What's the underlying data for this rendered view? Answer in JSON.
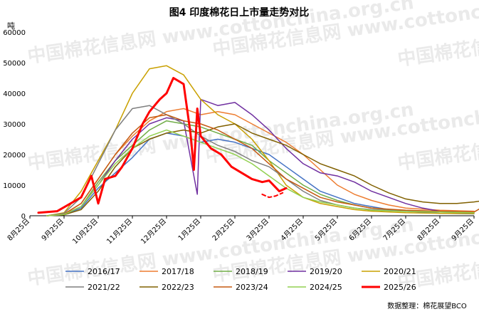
{
  "chart_data": {
    "type": "line",
    "title": "图4 印度棉花日上市量走势对比",
    "ylabel": "吨",
    "ylim": [
      0,
      60000
    ],
    "yticks": [
      "0",
      "10000",
      "20000",
      "30000",
      "40000",
      "50000",
      "60000"
    ],
    "xticks": [
      "8月25日",
      "9月25日",
      "10月25日",
      "11月25日",
      "12月25日",
      "1月25日",
      "2月25日",
      "3月25日",
      "4月25日",
      "5月25日",
      "6月25日",
      "7月25日",
      "8月25日",
      "9月25日"
    ],
    "grid": false,
    "legend_position": "bottom",
    "watermark": "中国棉花信息网 www.cottonchina.org.cn",
    "source": "数据整理：棉花展望BCO",
    "series": [
      {
        "name": "2016/17",
        "color": "#4472c4",
        "width": 1.5,
        "dash": false,
        "points": [
          [
            0.5,
            2
          ],
          [
            1,
            400
          ],
          [
            1.5,
            2500
          ],
          [
            2,
            9000
          ],
          [
            2.5,
            14000
          ],
          [
            3,
            19000
          ],
          [
            3.5,
            25000
          ],
          [
            4,
            27000
          ],
          [
            4.5,
            26000
          ],
          [
            5,
            24000
          ],
          [
            5.5,
            25000
          ],
          [
            6,
            24000
          ],
          [
            6.5,
            22000
          ],
          [
            7,
            20000
          ],
          [
            7.5,
            16000
          ],
          [
            8,
            12000
          ],
          [
            8.5,
            8000
          ],
          [
            9,
            6000
          ],
          [
            9.5,
            4000
          ],
          [
            10,
            3000
          ],
          [
            10.5,
            2000
          ],
          [
            11,
            1500
          ],
          [
            12,
            800
          ],
          [
            13,
            600
          ]
        ]
      },
      {
        "name": "2017/18",
        "color": "#ed7d31",
        "width": 1.5,
        "dash": false,
        "points": [
          [
            0.5,
            2
          ],
          [
            1,
            600
          ],
          [
            1.5,
            4000
          ],
          [
            2,
            12000
          ],
          [
            2.5,
            20000
          ],
          [
            3,
            26000
          ],
          [
            3.5,
            31000
          ],
          [
            4,
            34000
          ],
          [
            4.5,
            35000
          ],
          [
            5,
            33000
          ],
          [
            5.5,
            34000
          ],
          [
            6,
            33000
          ],
          [
            6.5,
            30000
          ],
          [
            7,
            27000
          ],
          [
            7.5,
            24000
          ],
          [
            8,
            20000
          ],
          [
            8.5,
            15000
          ],
          [
            9,
            10000
          ],
          [
            9.5,
            7000
          ],
          [
            10,
            5000
          ],
          [
            10.5,
            3500
          ],
          [
            11,
            2500
          ],
          [
            12,
            1800
          ],
          [
            13,
            1500
          ]
        ]
      },
      {
        "name": "2018/19",
        "color": "#70ad47",
        "width": 1.5,
        "dash": false,
        "points": [
          [
            0.5,
            2
          ],
          [
            1,
            500
          ],
          [
            1.5,
            3000
          ],
          [
            2,
            11000
          ],
          [
            2.5,
            18000
          ],
          [
            3,
            23000
          ],
          [
            3.5,
            28000
          ],
          [
            4,
            31000
          ],
          [
            4.5,
            30000
          ],
          [
            5,
            29000
          ],
          [
            5.5,
            27000
          ],
          [
            6,
            25000
          ],
          [
            6.5,
            23000
          ],
          [
            7,
            18000
          ],
          [
            7.5,
            14000
          ],
          [
            8,
            10000
          ],
          [
            8.5,
            7000
          ],
          [
            9,
            5000
          ],
          [
            9.5,
            3500
          ],
          [
            10,
            2500
          ],
          [
            10.5,
            2000
          ],
          [
            11,
            1600
          ],
          [
            12,
            1200
          ],
          [
            13,
            1000
          ]
        ]
      },
      {
        "name": "2019/20",
        "color": "#7030a0",
        "width": 1.5,
        "dash": false,
        "points": [
          [
            0.5,
            2
          ],
          [
            1,
            400
          ],
          [
            1.5,
            3000
          ],
          [
            2,
            10000
          ],
          [
            2.5,
            18000
          ],
          [
            3,
            25000
          ],
          [
            3.5,
            30000
          ],
          [
            4,
            32000
          ],
          [
            4.5,
            31000
          ],
          [
            4.9,
            7000
          ],
          [
            5,
            38000
          ],
          [
            5.5,
            36000
          ],
          [
            6,
            37000
          ],
          [
            6.5,
            33000
          ],
          [
            7,
            28000
          ],
          [
            7.5,
            22000
          ],
          [
            8,
            17000
          ],
          [
            8.5,
            14000
          ],
          [
            9,
            13000
          ],
          [
            9.5,
            11000
          ],
          [
            10,
            8000
          ],
          [
            10.5,
            6000
          ],
          [
            11,
            4000
          ],
          [
            11.5,
            2500
          ],
          [
            12,
            1500
          ],
          [
            13,
            1200
          ]
        ]
      },
      {
        "name": "2020/21",
        "color": "#c9a000",
        "width": 1.5,
        "dash": false,
        "points": [
          [
            0.5,
            2
          ],
          [
            1,
            1000
          ],
          [
            1.5,
            8000
          ],
          [
            2,
            18000
          ],
          [
            2.5,
            28000
          ],
          [
            3,
            40000
          ],
          [
            3.5,
            48000
          ],
          [
            4,
            49000
          ],
          [
            4.5,
            46000
          ],
          [
            5,
            38000
          ],
          [
            5.5,
            33000
          ],
          [
            6,
            30000
          ],
          [
            6.5,
            25000
          ],
          [
            7,
            18000
          ],
          [
            7.5,
            10000
          ],
          [
            8,
            6000
          ],
          [
            8.5,
            4000
          ],
          [
            9,
            3000
          ],
          [
            9.5,
            2000
          ],
          [
            10,
            1500
          ],
          [
            11,
            1000
          ],
          [
            12,
            800
          ],
          [
            13,
            700
          ]
        ]
      },
      {
        "name": "2021/22",
        "color": "#7f7f7f",
        "width": 1.5,
        "dash": false,
        "points": [
          [
            0.5,
            2
          ],
          [
            1,
            800
          ],
          [
            1.5,
            6000
          ],
          [
            2,
            17000
          ],
          [
            2.5,
            28000
          ],
          [
            3,
            35000
          ],
          [
            3.5,
            36000
          ],
          [
            4,
            33000
          ],
          [
            4.5,
            30000
          ],
          [
            5,
            26000
          ],
          [
            5.5,
            23000
          ],
          [
            6,
            21000
          ],
          [
            6.5,
            18000
          ],
          [
            7,
            16000
          ],
          [
            7.5,
            12000
          ],
          [
            8,
            8000
          ],
          [
            8.5,
            5000
          ],
          [
            9,
            3500
          ],
          [
            9.5,
            2500
          ],
          [
            10,
            2000
          ],
          [
            11,
            1500
          ],
          [
            12,
            1200
          ],
          [
            13,
            1000
          ]
        ]
      },
      {
        "name": "2022/23",
        "color": "#806000",
        "width": 1.5,
        "dash": false,
        "points": [
          [
            0.5,
            2
          ],
          [
            1,
            300
          ],
          [
            1.5,
            2000
          ],
          [
            2,
            8000
          ],
          [
            2.5,
            16000
          ],
          [
            3,
            22000
          ],
          [
            3.5,
            25000
          ],
          [
            4,
            27000
          ],
          [
            4.5,
            28000
          ],
          [
            5,
            27000
          ],
          [
            5.5,
            29000
          ],
          [
            6,
            30000
          ],
          [
            6.5,
            27000
          ],
          [
            7,
            25000
          ],
          [
            7.5,
            23000
          ],
          [
            8,
            20000
          ],
          [
            8.5,
            17000
          ],
          [
            9,
            15000
          ],
          [
            9.5,
            13000
          ],
          [
            10,
            10000
          ],
          [
            10.5,
            7500
          ],
          [
            11,
            5500
          ],
          [
            11.5,
            4500
          ],
          [
            12,
            4000
          ],
          [
            12.5,
            4000
          ],
          [
            13,
            4500
          ],
          [
            13.3,
            5000
          ],
          [
            13.5,
            7000
          ]
        ]
      },
      {
        "name": "2023/24",
        "color": "#c55a11",
        "width": 1.5,
        "dash": false,
        "points": [
          [
            0.5,
            2
          ],
          [
            1,
            500
          ],
          [
            1.5,
            4000
          ],
          [
            2,
            12000
          ],
          [
            2.5,
            20000
          ],
          [
            3,
            27000
          ],
          [
            3.5,
            32000
          ],
          [
            4,
            33000
          ],
          [
            4.5,
            31000
          ],
          [
            5,
            30000
          ],
          [
            5.5,
            28000
          ],
          [
            6,
            25000
          ],
          [
            6.5,
            22000
          ],
          [
            7,
            17000
          ],
          [
            7.5,
            12000
          ],
          [
            8,
            9000
          ],
          [
            8.5,
            6000
          ],
          [
            9,
            4500
          ],
          [
            9.5,
            3500
          ],
          [
            10,
            2500
          ],
          [
            11,
            1800
          ],
          [
            12,
            1500
          ],
          [
            13,
            1200
          ],
          [
            13.2,
            2500
          ]
        ]
      },
      {
        "name": "2024/25",
        "color": "#92d050",
        "width": 1.5,
        "dash": false,
        "points": [
          [
            0.5,
            2
          ],
          [
            1,
            400
          ],
          [
            1.5,
            3000
          ],
          [
            2,
            10000
          ],
          [
            2.5,
            17000
          ],
          [
            3,
            22000
          ],
          [
            3.5,
            26000
          ],
          [
            4,
            28000
          ],
          [
            4.5,
            26000
          ],
          [
            5,
            24000
          ],
          [
            5.5,
            22000
          ],
          [
            6,
            20000
          ],
          [
            6.5,
            17000
          ],
          [
            7,
            13000
          ],
          [
            7.5,
            9000
          ],
          [
            8,
            6000
          ],
          [
            8.5,
            4500
          ],
          [
            9,
            3500
          ],
          [
            9.5,
            2500
          ],
          [
            10,
            1800
          ],
          [
            11,
            1400
          ],
          [
            12,
            1200
          ],
          [
            13,
            1000
          ]
        ]
      },
      {
        "name": "2025/26",
        "color": "#ff0000",
        "width": 3,
        "dash": false,
        "points": [
          [
            0.25,
            1000
          ],
          [
            0.8,
            1500
          ],
          [
            1.5,
            6000
          ],
          [
            1.8,
            13000
          ],
          [
            2,
            4000
          ],
          [
            2.2,
            12000
          ],
          [
            2.5,
            13000
          ],
          [
            2.7,
            16000
          ],
          [
            3,
            22000
          ],
          [
            3.3,
            30000
          ],
          [
            3.5,
            34000
          ],
          [
            3.8,
            38000
          ],
          [
            4,
            40000
          ],
          [
            4.2,
            45000
          ],
          [
            4.5,
            43000
          ],
          [
            4.7,
            27000
          ],
          [
            4.8,
            15000
          ],
          [
            4.9,
            35000
          ],
          [
            5,
            26000
          ],
          [
            5.3,
            22000
          ],
          [
            5.6,
            20000
          ],
          [
            5.9,
            16000
          ],
          [
            6.2,
            14000
          ],
          [
            6.5,
            12000
          ],
          [
            6.8,
            11000
          ],
          [
            7,
            11500
          ],
          [
            7.3,
            8000
          ],
          [
            7.5,
            9000
          ]
        ]
      },
      {
        "name": "",
        "color": "#ff0000",
        "width": 2,
        "dash": true,
        "points": [
          [
            6.8,
            7000
          ],
          [
            7.0,
            6000
          ],
          [
            7.2,
            6500
          ],
          [
            7.4,
            7500
          ]
        ]
      }
    ]
  }
}
